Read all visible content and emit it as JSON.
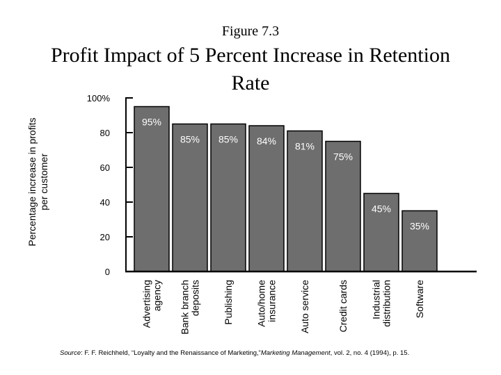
{
  "figure_label": "Figure 7.3",
  "title": "Profit Impact of 5 Percent Increase in Retention Rate",
  "source": {
    "prefix": "Source",
    "before": ": F. F. Reichheld, “Loyalty and the Renaissance of Marketing,”",
    "journal": "Marketing Management",
    "after": ", vol. 2, no. 4 (1994), p. 15."
  },
  "colors": {
    "bar": "#6e6e6e",
    "bar_stroke": "#000000",
    "label": "#ffffff",
    "axis": "#000000"
  },
  "chart_data": {
    "type": "bar",
    "categories": [
      [
        "Advertising",
        "agency"
      ],
      [
        "Bank branch",
        "deposits"
      ],
      [
        "Publishing"
      ],
      [
        "Auto/home",
        "insurance"
      ],
      [
        "Auto service"
      ],
      [
        "Credit cards"
      ],
      [
        "Industrial",
        "distribution"
      ],
      [
        "Software"
      ]
    ],
    "values": [
      95,
      85,
      85,
      84,
      81,
      75,
      45,
      35
    ],
    "data_labels": [
      "95%",
      "85%",
      "85%",
      "84%",
      "81%",
      "75%",
      "45%",
      "35%"
    ],
    "ylabel": [
      "Percentage increase in profits",
      "per customer"
    ],
    "yticks": [
      0,
      20,
      40,
      60,
      80,
      100
    ],
    "ytick_labels": [
      "0",
      "20",
      "40",
      "60",
      "80",
      "100%"
    ],
    "ylim": [
      0,
      100
    ],
    "grid": false
  }
}
